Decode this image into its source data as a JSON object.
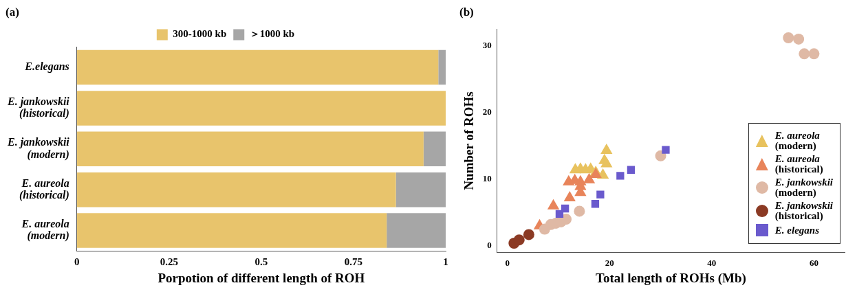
{
  "chart_data": [
    {
      "type": "bar",
      "title": "(a)",
      "orientation": "horizontal",
      "stacked": true,
      "categories": [
        "E.elegans",
        "E. jankowskii\n(historical)",
        "E. jankowskii\n(modern)",
        "E. aureola\n(historical)",
        "E. aureola\n(modern)"
      ],
      "xlabel": "Porpotion of different length of ROH",
      "xlim": [
        0,
        1
      ],
      "xticks": [
        0,
        0.25,
        0.5,
        0.75,
        1
      ],
      "grid": false,
      "legend": "top",
      "series": [
        {
          "name": "300-1000 kb",
          "color": "#e8c46c",
          "values": [
            0.98,
            1.0,
            0.94,
            0.865,
            0.84
          ]
        },
        {
          "name": "＞1000 kb",
          "color": "#a6a6a6",
          "values": [
            0.02,
            0,
            0.06,
            0.135,
            0.16
          ]
        }
      ]
    },
    {
      "type": "scatter",
      "title": "(b)",
      "xlabel": "Total length of ROHs (Mb)",
      "ylabel": "Number of ROHs",
      "xlim": [
        -2,
        66
      ],
      "ylim": [
        -1,
        32.5
      ],
      "xticks": [
        0,
        20,
        40,
        60
      ],
      "yticks": [
        0,
        10,
        20,
        30
      ],
      "grid": false,
      "legend": "bottom right",
      "series": [
        {
          "name": "E. aureola\n(modern)",
          "color": "#e8c25e",
          "marker": "triangle",
          "x": [
            19.4,
            19.0,
            19.4,
            13.3,
            14.3,
            15.3,
            16.3,
            17.3,
            18.7
          ],
          "values": [
            14.3,
            12.8,
            12.3,
            11.4,
            11.5,
            11.4,
            11.5,
            11.0,
            10.6
          ]
        },
        {
          "name": "E. aureola\n(historical)",
          "color": "#e8845a",
          "marker": "triangle",
          "x": [
            6.3,
            9.0,
            12.2,
            14.3,
            12.0,
            13.2,
            14.3,
            16.0,
            17.3,
            14.3
          ],
          "values": [
            3.0,
            6.0,
            7.2,
            8.0,
            9.6,
            9.8,
            9.6,
            9.9,
            10.7,
            8.9
          ]
        },
        {
          "name": "E. jankowskii\n(modern)",
          "color": "#dfb9a5",
          "marker": "circle",
          "x": [
            7.3,
            8.5,
            9.5,
            10.5,
            11.5,
            14.1,
            30.0,
            55.0,
            57.0,
            58.1,
            60.0
          ],
          "values": [
            2.5,
            3.2,
            3.4,
            3.6,
            4.0,
            5.2,
            13.5,
            31.2,
            31.0,
            28.8,
            28.8
          ]
        },
        {
          "name": "E. jankowskii\n(historical)",
          "color": "#8b3a24",
          "marker": "circle",
          "x": [
            1.3,
            2.3,
            4.2
          ],
          "values": [
            0.4,
            0.9,
            1.7
          ]
        },
        {
          "name": "E. elegans",
          "color": "#6a5acd",
          "marker": "square",
          "x": [
            10.2,
            11.3,
            17.2,
            18.2,
            22.1,
            24.2,
            31.0
          ],
          "values": [
            4.8,
            5.6,
            6.3,
            7.7,
            10.5,
            11.4,
            14.4
          ]
        }
      ]
    }
  ]
}
